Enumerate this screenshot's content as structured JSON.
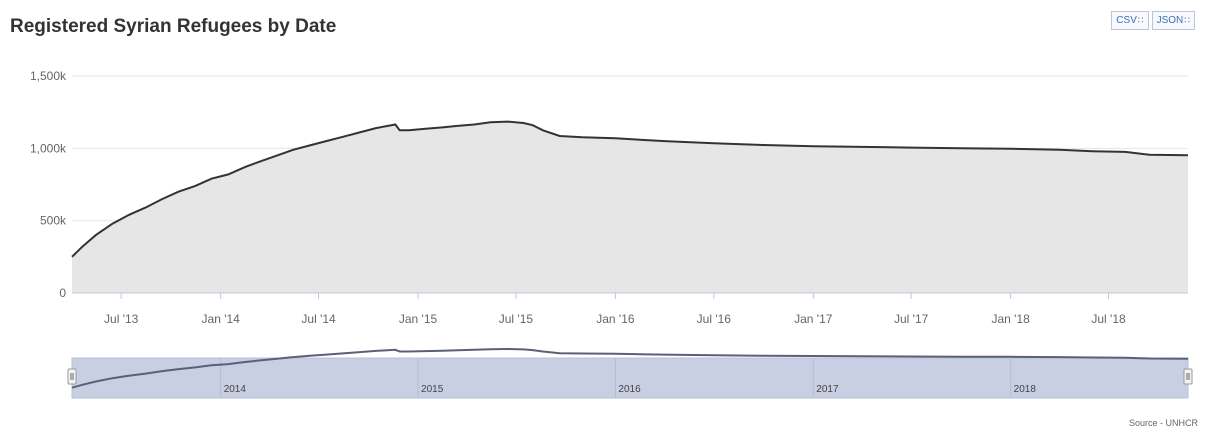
{
  "title": "Registered Syrian Refugees by Date",
  "exports": [
    {
      "label": "CSV",
      "icon": "rss-icon"
    },
    {
      "label": "JSON",
      "icon": "rss-icon"
    }
  ],
  "source": "Source - UNHCR",
  "colors": {
    "line": "#333333",
    "area": "#e6e6e6",
    "grid": "#e6e6e6",
    "navigator_bg": "#c8cfe3",
    "navigator_line": "#5a6078",
    "title": "#333333",
    "export_text": "#3b6fb6"
  },
  "chart_data": {
    "type": "area",
    "title": "Registered Syrian Refugees by Date",
    "xlabel": "",
    "ylabel": "",
    "xlim": [
      "2013-04-01",
      "2018-11-25"
    ],
    "ylim": [
      0,
      1500000
    ],
    "y_ticks": [
      0,
      500000,
      1000000,
      1500000
    ],
    "y_tick_labels": [
      "0",
      "500k",
      "1,000k",
      "1,500k"
    ],
    "x_ticks": [
      "2013-07-01",
      "2014-01-01",
      "2014-07-01",
      "2015-01-01",
      "2015-07-01",
      "2016-01-01",
      "2016-07-01",
      "2017-01-01",
      "2017-07-01",
      "2018-01-01",
      "2018-07-01"
    ],
    "x_tick_labels": [
      "Jul '13",
      "Jan '14",
      "Jul '14",
      "Jan '15",
      "Jul '15",
      "Jan '16",
      "Jul '16",
      "Jan '17",
      "Jul '17",
      "Jan '18",
      "Jul '18"
    ],
    "grid": true,
    "legend": "none",
    "series": [
      {
        "points": [
          [
            "2013-04-01",
            250000
          ],
          [
            "2013-04-20",
            320000
          ],
          [
            "2013-05-15",
            400000
          ],
          [
            "2013-06-15",
            480000
          ],
          [
            "2013-07-15",
            540000
          ],
          [
            "2013-08-15",
            590000
          ],
          [
            "2013-09-15",
            650000
          ],
          [
            "2013-10-15",
            700000
          ],
          [
            "2013-11-15",
            740000
          ],
          [
            "2013-12-15",
            790000
          ],
          [
            "2014-01-15",
            820000
          ],
          [
            "2014-02-15",
            870000
          ],
          [
            "2014-03-15",
            910000
          ],
          [
            "2014-04-15",
            950000
          ],
          [
            "2014-05-15",
            990000
          ],
          [
            "2014-06-15",
            1020000
          ],
          [
            "2014-07-15",
            1050000
          ],
          [
            "2014-08-15",
            1080000
          ],
          [
            "2014-09-15",
            1110000
          ],
          [
            "2014-10-15",
            1140000
          ],
          [
            "2014-11-20",
            1165000
          ],
          [
            "2014-11-28",
            1125000
          ],
          [
            "2014-12-15",
            1125000
          ],
          [
            "2015-01-15",
            1135000
          ],
          [
            "2015-02-15",
            1145000
          ],
          [
            "2015-03-15",
            1155000
          ],
          [
            "2015-04-15",
            1165000
          ],
          [
            "2015-05-15",
            1180000
          ],
          [
            "2015-06-15",
            1185000
          ],
          [
            "2015-07-15",
            1175000
          ],
          [
            "2015-08-01",
            1160000
          ],
          [
            "2015-08-20",
            1125000
          ],
          [
            "2015-09-20",
            1085000
          ],
          [
            "2015-11-01",
            1077000
          ],
          [
            "2016-01-01",
            1070000
          ],
          [
            "2016-02-15",
            1060000
          ],
          [
            "2016-04-01",
            1050000
          ],
          [
            "2016-07-01",
            1035000
          ],
          [
            "2016-10-01",
            1023000
          ],
          [
            "2017-01-01",
            1015000
          ],
          [
            "2017-04-01",
            1010000
          ],
          [
            "2017-07-01",
            1005000
          ],
          [
            "2017-10-01",
            1000000
          ],
          [
            "2018-01-01",
            997000
          ],
          [
            "2018-04-01",
            990000
          ],
          [
            "2018-06-01",
            980000
          ],
          [
            "2018-08-01",
            975000
          ],
          [
            "2018-09-15",
            955000
          ],
          [
            "2018-11-25",
            952000
          ]
        ]
      }
    ],
    "navigator": {
      "labels": [
        "2014",
        "2015",
        "2016",
        "2017",
        "2018"
      ],
      "label_dates": [
        "2014-01-01",
        "2015-01-01",
        "2016-01-01",
        "2017-01-01",
        "2018-01-01"
      ]
    }
  }
}
